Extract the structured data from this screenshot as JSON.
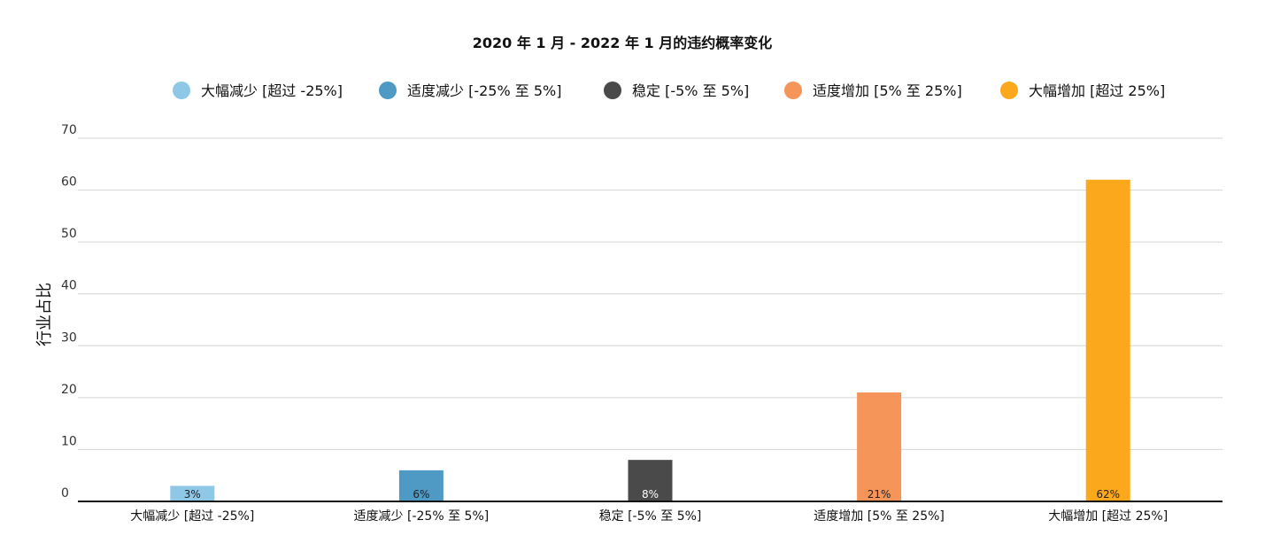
{
  "chart_data": {
    "type": "bar",
    "title": "2020 年 1 月 - 2022 年 1 月的违约概率变化",
    "xlabel": "",
    "ylabel": "行业占比",
    "ylim": [
      0,
      70
    ],
    "yticks": [
      0,
      10,
      20,
      30,
      40,
      50,
      60,
      70
    ],
    "grid": true,
    "legend_position": "top",
    "categories": [
      "大幅减少 [超过 -25%]",
      "适度减少 [-25% 至 5%]",
      "稳定 [-5% 至 5%]",
      "适度增加 [5% 至 25%]",
      "大幅增加 [超过 25%]"
    ],
    "values": [
      3,
      6,
      8,
      21,
      62
    ],
    "data_labels": [
      "3%",
      "6%",
      "8%",
      "21%",
      "62%"
    ],
    "colors": [
      "#8ec8e6",
      "#4e9ac4",
      "#4a4a4a",
      "#f5955a",
      "#fba81c"
    ],
    "legend": [
      {
        "label": "大幅减少 [超过 -25%]",
        "color": "#8ec8e6"
      },
      {
        "label": "适度减少 [-25% 至 5%]",
        "color": "#4e9ac4"
      },
      {
        "label": "稳定 [-5% 至 5%]",
        "color": "#4a4a4a"
      },
      {
        "label": "适度增加 [5% 至 25%]",
        "color": "#f5955a"
      },
      {
        "label": "大幅增加 [超过 25%]",
        "color": "#fba81c"
      }
    ]
  }
}
